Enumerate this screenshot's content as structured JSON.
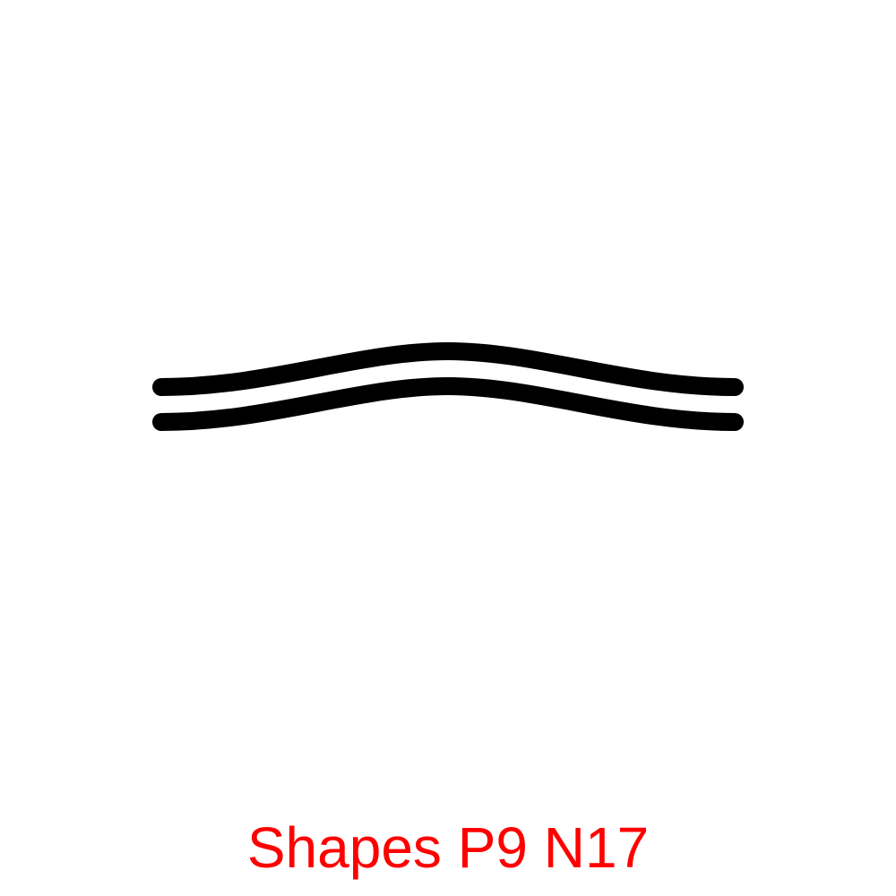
{
  "caption": {
    "text": "Shapes P9 N17",
    "color": "#ff0000"
  },
  "shape": {
    "kind": "double-curved-line",
    "stroke_color": "#000000"
  },
  "background_color": "#ffffff"
}
